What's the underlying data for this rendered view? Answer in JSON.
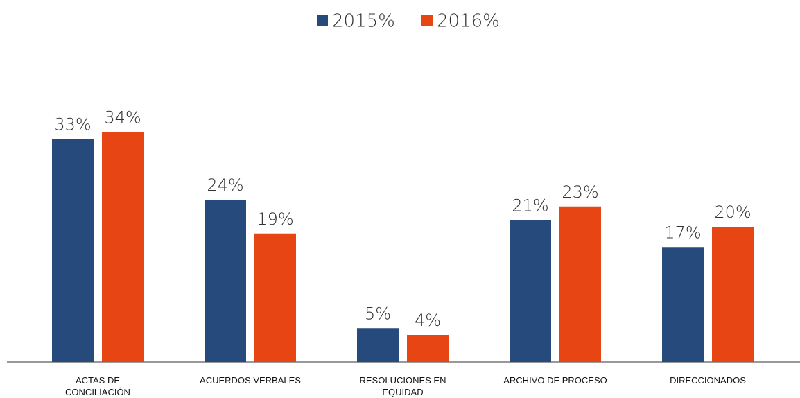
{
  "chart_data": {
    "type": "bar",
    "categories": [
      "ACTAS DE CONCILIACIÓN",
      "ACUERDOS VERBALES",
      "RESOLUCIONES EN EQUIDAD",
      "ARCHIVO DE PROCESO",
      "DIRECCIONADOS"
    ],
    "series": [
      {
        "name": "2015%",
        "color": "#264a7c",
        "values": [
          33,
          24,
          5,
          21,
          17
        ],
        "value_labels": [
          "33%",
          "24%",
          "5%",
          "21%",
          "17%"
        ]
      },
      {
        "name": "2016%",
        "color": "#e84514",
        "values": [
          34,
          19,
          4,
          23,
          20
        ],
        "value_labels": [
          "34%",
          "19%",
          "4%",
          "23%",
          "20%"
        ]
      }
    ],
    "legend": "top"
  }
}
